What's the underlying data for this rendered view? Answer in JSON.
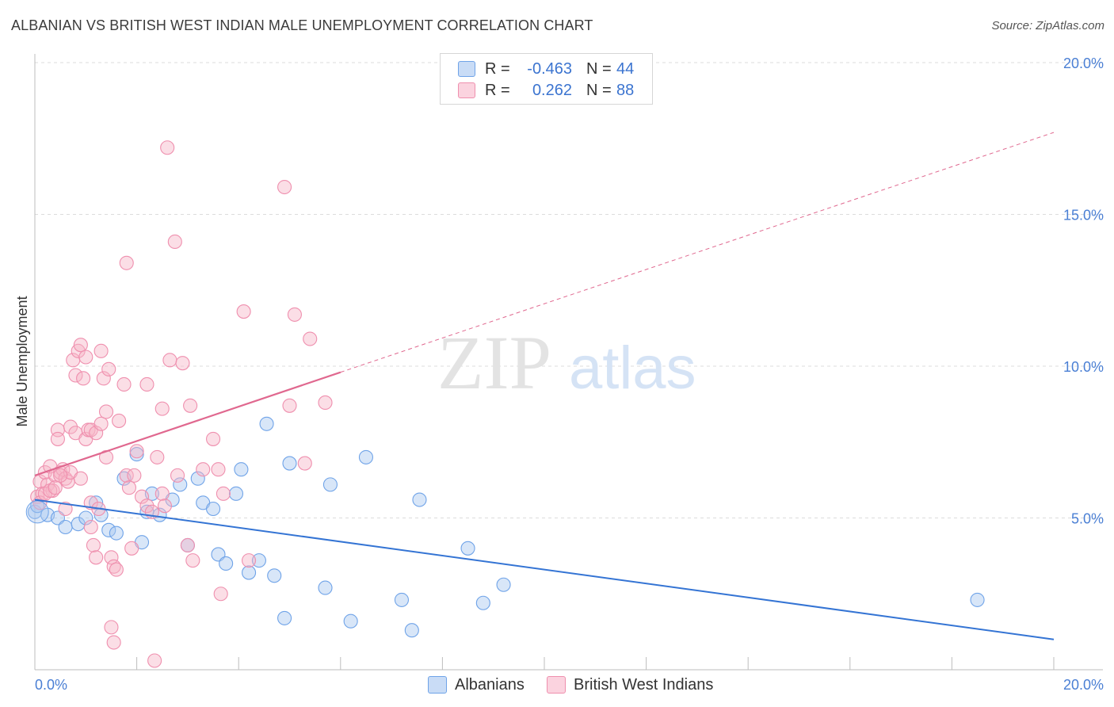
{
  "title": "ALBANIAN VS BRITISH WEST INDIAN MALE UNEMPLOYMENT CORRELATION CHART",
  "source": "Source: ZipAtlas.com",
  "watermark": {
    "zip": "ZIP",
    "atlas": "atlas"
  },
  "legend_stats": [
    {
      "r_label": "R =",
      "r_value": "-0.463",
      "n_label": "N =",
      "n_value": "44",
      "color": "#a9c8f0"
    },
    {
      "r_label": "R =",
      "r_value": "0.262",
      "n_label": "N =",
      "n_value": "88",
      "color": "#f7b6c8"
    }
  ],
  "bottom_legend": [
    {
      "label": "Albanians",
      "color": "#a9c8f0"
    },
    {
      "label": "British West Indians",
      "color": "#f7b6c8"
    }
  ],
  "chart_data": {
    "type": "scatter",
    "title": "ALBANIAN VS BRITISH WEST INDIAN MALE UNEMPLOYMENT CORRELATION CHART",
    "xlabel": "",
    "ylabel": "Male Unemployment",
    "xlim": [
      0,
      20
    ],
    "ylim": [
      0,
      20
    ],
    "x_tick_labels": [
      "0.0%",
      "20.0%"
    ],
    "y_tick_labels": [
      "5.0%",
      "10.0%",
      "15.0%",
      "20.0%"
    ],
    "y_ticks": [
      5,
      10,
      15,
      20
    ],
    "grid": true,
    "legend_position": "top-center",
    "series": [
      {
        "name": "Albanians",
        "color": "#6fa3e8",
        "fill": "#a9c8f0",
        "trend_line": {
          "x": [
            0,
            20
          ],
          "y": [
            5.6,
            1.0
          ],
          "color": "#3474d4",
          "style": "solid"
        },
        "points": [
          [
            0.0,
            5.2
          ],
          [
            0.25,
            5.1
          ],
          [
            0.45,
            5.0
          ],
          [
            0.6,
            4.7
          ],
          [
            0.85,
            4.8
          ],
          [
            1.0,
            5.0
          ],
          [
            1.2,
            5.5
          ],
          [
            1.3,
            5.1
          ],
          [
            1.45,
            4.6
          ],
          [
            1.6,
            4.5
          ],
          [
            1.75,
            6.3
          ],
          [
            2.1,
            4.2
          ],
          [
            2.2,
            5.2
          ],
          [
            2.3,
            5.8
          ],
          [
            2.45,
            5.1
          ],
          [
            2.7,
            5.6
          ],
          [
            2.85,
            6.1
          ],
          [
            3.0,
            4.1
          ],
          [
            3.2,
            6.3
          ],
          [
            3.3,
            5.5
          ],
          [
            3.5,
            5.3
          ],
          [
            3.6,
            3.8
          ],
          [
            3.75,
            3.5
          ],
          [
            3.95,
            5.8
          ],
          [
            4.05,
            6.6
          ],
          [
            4.2,
            3.2
          ],
          [
            4.4,
            3.6
          ],
          [
            4.55,
            8.1
          ],
          [
            4.7,
            3.1
          ],
          [
            4.9,
            1.7
          ],
          [
            5.0,
            6.8
          ],
          [
            5.7,
            2.7
          ],
          [
            5.8,
            6.1
          ],
          [
            6.2,
            1.6
          ],
          [
            6.5,
            7.0
          ],
          [
            7.2,
            2.3
          ],
          [
            7.4,
            1.3
          ],
          [
            7.55,
            5.6
          ],
          [
            8.5,
            4.0
          ],
          [
            8.8,
            2.2
          ],
          [
            9.2,
            2.8
          ],
          [
            18.5,
            2.3
          ],
          [
            2.0,
            7.1
          ],
          [
            0.05,
            5.4
          ]
        ]
      },
      {
        "name": "British West Indians",
        "color": "#ef8fae",
        "fill": "#f7b6c8",
        "trend_line": {
          "x": [
            0,
            6
          ],
          "y": [
            6.4,
            9.8
          ],
          "x_dashed": [
            6,
            20
          ],
          "y_dashed": [
            9.8,
            17.7
          ],
          "color": "#e0688f",
          "style": "solid+dashed"
        },
        "points": [
          [
            0.05,
            5.7
          ],
          [
            0.1,
            6.2
          ],
          [
            0.15,
            5.8
          ],
          [
            0.2,
            6.5
          ],
          [
            0.25,
            6.1
          ],
          [
            0.3,
            6.7
          ],
          [
            0.35,
            5.9
          ],
          [
            0.4,
            6.4
          ],
          [
            0.45,
            7.9
          ],
          [
            0.45,
            7.6
          ],
          [
            0.5,
            6.5
          ],
          [
            0.55,
            6.6
          ],
          [
            0.6,
            5.3
          ],
          [
            0.6,
            6.3
          ],
          [
            0.65,
            6.2
          ],
          [
            0.7,
            6.5
          ],
          [
            0.7,
            8.0
          ],
          [
            0.75,
            10.2
          ],
          [
            0.8,
            7.8
          ],
          [
            0.8,
            9.7
          ],
          [
            0.85,
            10.5
          ],
          [
            0.9,
            10.7
          ],
          [
            0.9,
            6.3
          ],
          [
            0.95,
            9.6
          ],
          [
            1.0,
            7.6
          ],
          [
            1.0,
            10.3
          ],
          [
            1.05,
            7.9
          ],
          [
            1.1,
            5.5
          ],
          [
            1.1,
            4.7
          ],
          [
            1.1,
            7.9
          ],
          [
            1.15,
            4.1
          ],
          [
            1.2,
            7.8
          ],
          [
            1.2,
            3.7
          ],
          [
            1.25,
            5.3
          ],
          [
            1.3,
            10.5
          ],
          [
            1.3,
            8.1
          ],
          [
            1.35,
            9.6
          ],
          [
            1.4,
            7.0
          ],
          [
            1.4,
            8.5
          ],
          [
            1.45,
            9.9
          ],
          [
            1.5,
            3.7
          ],
          [
            1.5,
            1.4
          ],
          [
            1.55,
            0.9
          ],
          [
            1.55,
            3.4
          ],
          [
            1.6,
            3.3
          ],
          [
            1.65,
            8.2
          ],
          [
            1.75,
            9.4
          ],
          [
            1.8,
            13.4
          ],
          [
            1.8,
            6.4
          ],
          [
            1.85,
            6.0
          ],
          [
            1.9,
            4.0
          ],
          [
            1.95,
            6.4
          ],
          [
            2.0,
            7.2
          ],
          [
            2.1,
            5.7
          ],
          [
            2.2,
            5.4
          ],
          [
            2.2,
            9.4
          ],
          [
            2.3,
            5.2
          ],
          [
            2.35,
            0.3
          ],
          [
            2.4,
            7.0
          ],
          [
            2.5,
            8.6
          ],
          [
            2.5,
            5.8
          ],
          [
            2.55,
            5.4
          ],
          [
            2.6,
            17.2
          ],
          [
            2.65,
            10.2
          ],
          [
            2.75,
            14.1
          ],
          [
            2.8,
            6.4
          ],
          [
            2.9,
            10.1
          ],
          [
            3.0,
            4.1
          ],
          [
            3.1,
            3.6
          ],
          [
            3.05,
            8.7
          ],
          [
            3.3,
            6.6
          ],
          [
            3.5,
            7.6
          ],
          [
            3.6,
            6.6
          ],
          [
            3.65,
            2.5
          ],
          [
            3.7,
            5.8
          ],
          [
            4.1,
            11.8
          ],
          [
            4.2,
            3.6
          ],
          [
            4.9,
            15.9
          ],
          [
            5.0,
            8.7
          ],
          [
            5.1,
            11.7
          ],
          [
            5.3,
            6.8
          ],
          [
            5.4,
            10.9
          ],
          [
            5.7,
            8.8
          ],
          [
            0.1,
            5.5
          ],
          [
            0.2,
            5.8
          ],
          [
            0.3,
            5.9
          ],
          [
            0.4,
            6.0
          ],
          [
            0.5,
            6.4
          ]
        ]
      }
    ]
  }
}
